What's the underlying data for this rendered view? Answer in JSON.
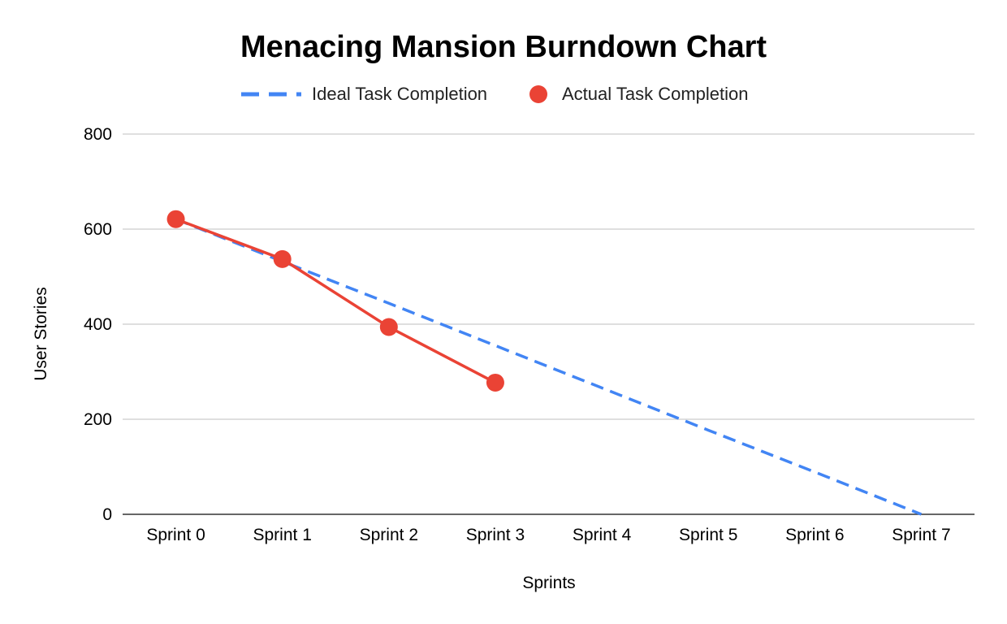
{
  "chart_data": {
    "type": "line",
    "title": "Menacing Mansion Burndown Chart",
    "xlabel": "Sprints",
    "ylabel": "User Stories",
    "categories": [
      "Sprint 0",
      "Sprint 1",
      "Sprint 2",
      "Sprint 3",
      "Sprint 4",
      "Sprint 5",
      "Sprint 6",
      "Sprint 7"
    ],
    "ylim": [
      0,
      800
    ],
    "yticks": [
      "0",
      "200",
      "400",
      "600",
      "800"
    ],
    "grid": true,
    "legend_position": "top",
    "series": [
      {
        "name": "Ideal Task Completion",
        "style": "dashed",
        "color": "#4285F4",
        "values": [
          621,
          532,
          444,
          355,
          266,
          177,
          89,
          0
        ]
      },
      {
        "name": "Actual Task Completion",
        "style": "line-with-markers",
        "color": "#EA4335",
        "values": [
          621,
          537,
          394,
          277,
          null,
          null,
          null,
          null
        ]
      }
    ]
  }
}
